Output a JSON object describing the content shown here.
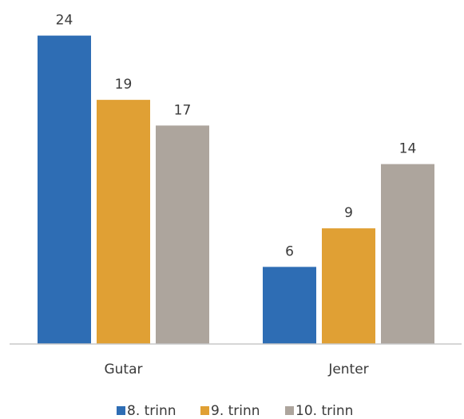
{
  "chart_data": {
    "type": "bar",
    "categories": [
      "Gutar",
      "Jenter"
    ],
    "series": [
      {
        "name": "8. trinn",
        "values": [
          24,
          6
        ],
        "color": "#2e6db4"
      },
      {
        "name": "9. trinn",
        "values": [
          19,
          9
        ],
        "color": "#e0a034"
      },
      {
        "name": "10. trinn",
        "values": [
          17,
          14
        ],
        "color": "#ada59d"
      }
    ],
    "ylim": [
      0,
      24
    ],
    "grid": false,
    "legend": "bottom",
    "data_labels": true
  }
}
